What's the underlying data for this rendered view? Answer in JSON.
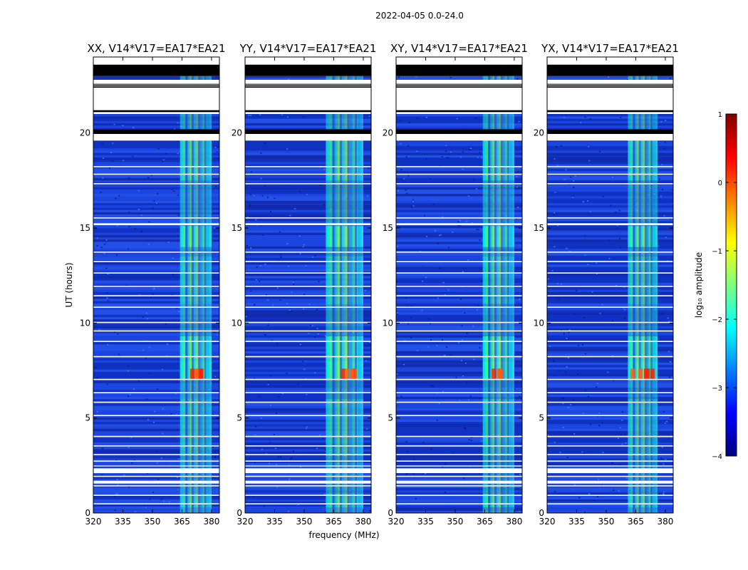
{
  "figure": {
    "suptitle": "2022-04-05 0.0-24.0",
    "colorbar": {
      "label": "log₁₀ amplitude",
      "ticks": [
        "1",
        "0",
        "−1",
        "−2",
        "−3",
        "−4"
      ],
      "tick_values": [
        1,
        0,
        -1,
        -2,
        -3,
        -4
      ],
      "range": [
        -4,
        1
      ],
      "colormap": "jet",
      "colors": [
        "#000080",
        "#0000ff",
        "#0080ff",
        "#00ffff",
        "#80ff80",
        "#ffff00",
        "#ff8000",
        "#ff0000",
        "#800000"
      ]
    }
  },
  "chart_data": [
    {
      "type": "heatmap",
      "title": "XX, V14*V17=EA17*EA21",
      "xlabel": "",
      "ylabel": "UT (hours)",
      "x_ticks": [
        "320",
        "335",
        "350",
        "365",
        "380"
      ],
      "x_tick_values": [
        320,
        335,
        350,
        365,
        380
      ],
      "y_ticks": [
        "0",
        "5",
        "10",
        "15",
        "20"
      ],
      "y_tick_values": [
        0,
        5,
        10,
        15,
        20
      ],
      "xlim": [
        320,
        384
      ],
      "ylim": [
        0,
        24
      ],
      "rfi_band_mhz": [
        364,
        380
      ],
      "rfi_peak_hours": [
        7,
        7.6
      ]
    },
    {
      "type": "heatmap",
      "title": "YY, V14*V17=EA17*EA21",
      "xlabel": "frequency (MHz)",
      "ylabel": "",
      "x_ticks": [
        "320",
        "335",
        "350",
        "365",
        "380"
      ],
      "x_tick_values": [
        320,
        335,
        350,
        365,
        380
      ],
      "y_ticks": [
        "0",
        "5",
        "10",
        "15",
        "20"
      ],
      "y_tick_values": [
        0,
        5,
        10,
        15,
        20
      ],
      "xlim": [
        320,
        384
      ],
      "ylim": [
        0,
        24
      ],
      "rfi_band_mhz": [
        361,
        380
      ],
      "rfi_peak_hours": [
        7,
        7.6
      ]
    },
    {
      "type": "heatmap",
      "title": "XY, V14*V17=EA17*EA21",
      "xlabel": "",
      "ylabel": "",
      "x_ticks": [
        "320",
        "335",
        "350",
        "365",
        "380"
      ],
      "x_tick_values": [
        320,
        335,
        350,
        365,
        380
      ],
      "y_ticks": [
        "0",
        "5",
        "10",
        "15",
        "20"
      ],
      "y_tick_values": [
        0,
        5,
        10,
        15,
        20
      ],
      "xlim": [
        320,
        384
      ],
      "ylim": [
        0,
        24
      ],
      "rfi_band_mhz": [
        364,
        380
      ],
      "rfi_peak_hours": [
        7,
        7.6
      ]
    },
    {
      "type": "heatmap",
      "title": "YX, V14*V17=EA17*EA21",
      "xlabel": "",
      "ylabel": "",
      "x_ticks": [
        "320",
        "335",
        "350",
        "365",
        "380"
      ],
      "x_tick_values": [
        320,
        335,
        350,
        365,
        380
      ],
      "y_ticks": [
        "0",
        "5",
        "10",
        "15",
        "20"
      ],
      "y_tick_values": [
        0,
        5,
        10,
        15,
        20
      ],
      "xlim": [
        320,
        384
      ],
      "ylim": [
        0,
        24
      ],
      "rfi_band_mhz": [
        361,
        376
      ],
      "rfi_peak_hours": [
        7,
        7.6
      ]
    }
  ],
  "flagged_hours": [
    [
      23.0,
      23.6
    ],
    [
      22.6,
      22.8
    ],
    [
      22.2,
      22.35
    ],
    [
      21.0,
      21.2
    ],
    [
      19.95,
      20.2
    ],
    [
      19.6,
      19.65
    ],
    [
      18.2,
      18.26
    ],
    [
      17.8,
      17.86
    ],
    [
      17.3,
      17.36
    ],
    [
      15.5,
      15.56
    ],
    [
      15.15,
      15.25
    ],
    [
      13.7,
      13.76
    ],
    [
      13.2,
      13.26
    ],
    [
      12.6,
      12.66
    ],
    [
      11.9,
      11.96
    ],
    [
      11.4,
      11.46
    ],
    [
      10.8,
      10.86
    ],
    [
      10.0,
      10.06
    ],
    [
      9.55,
      9.61
    ],
    [
      9.0,
      9.06
    ],
    [
      8.2,
      8.26
    ],
    [
      7.0,
      7.06
    ],
    [
      6.3,
      6.36
    ],
    [
      5.8,
      5.86
    ],
    [
      5.1,
      5.16
    ],
    [
      4.0,
      4.06
    ],
    [
      3.5,
      3.56
    ],
    [
      3.05,
      3.11
    ],
    [
      2.7,
      2.76
    ],
    [
      2.45,
      2.5
    ],
    [
      1.9,
      1.96
    ],
    [
      1.4,
      1.46
    ],
    [
      0.9,
      0.96
    ],
    [
      0.45,
      0.51
    ]
  ],
  "blank_hours": [
    [
      23.6,
      24.0
    ],
    [
      21.2,
      22.2
    ],
    [
      19.65,
      19.95
    ],
    [
      2.1,
      2.35
    ],
    [
      1.55,
      1.7
    ]
  ]
}
